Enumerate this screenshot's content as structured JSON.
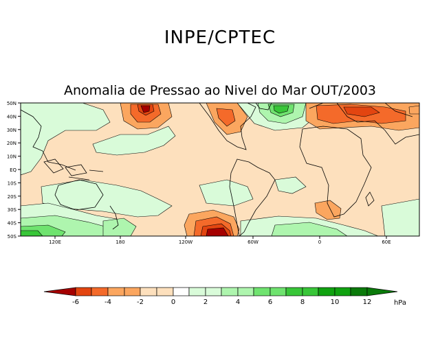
{
  "header": {
    "org": "INPE/CPTEC"
  },
  "map": {
    "title": "Anomalia de Pressao ao Nivel do Mar OUT/2003",
    "lat_labels": [
      "50N",
      "40N",
      "30N",
      "20N",
      "10N",
      "EQ",
      "10S",
      "20S",
      "30S",
      "40S",
      "50S"
    ],
    "lon_labels": [
      "120E",
      "180",
      "120W",
      "60W",
      "0",
      "60E"
    ]
  },
  "colorbar": {
    "unit": "hPa",
    "tick_labels": [
      "-6",
      "-4",
      "-2",
      "0",
      "2",
      "4",
      "6",
      "8",
      "10",
      "12"
    ],
    "colors": [
      "#a50000",
      "#e34510",
      "#f46a2a",
      "#fba65f",
      "#fde0bd",
      "#ffffff",
      "#d9fbd9",
      "#aef5ae",
      "#6fe36f",
      "#38c638",
      "#10a210",
      "#0a7a0a"
    ]
  },
  "colors": {
    "land_outline": "#000000",
    "pressure_high": "#10a210",
    "pressure_low": "#a50000"
  }
}
